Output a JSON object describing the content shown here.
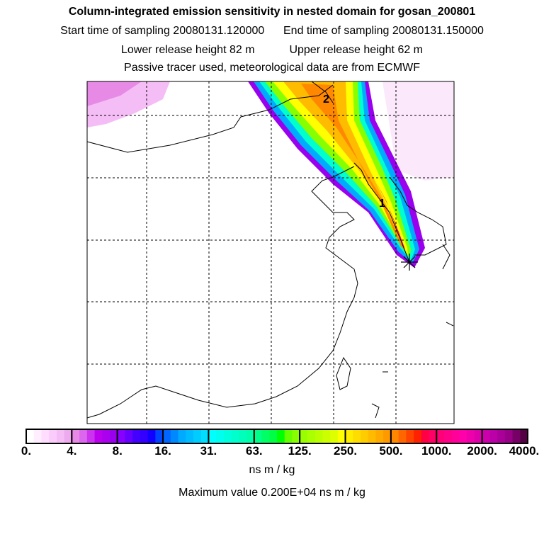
{
  "title": "Column-integrated emission sensitivity in nested domain for gosan_200801",
  "subtitle_start": "Start time of sampling 20080131.120000",
  "subtitle_end": "End time of sampling 20080131.150000",
  "lower_release": "Lower release height   82 m",
  "upper_release": "Upper release height   62 m",
  "tracer_note": "Passive tracer used, meteorological data are from ECMWF",
  "map": {
    "trajectory_labels": [
      "2",
      "1"
    ],
    "receptor_icon": "star-icon"
  },
  "colorbar": {
    "labels": [
      "0.",
      "4.",
      "8.",
      "16.",
      "31.",
      "63.",
      "125.",
      "250.",
      "500.",
      "1000.",
      "2000.",
      "4000."
    ],
    "colors": [
      [
        "#ffffff",
        "#ffeeff",
        "#ffddff",
        "#fbccfb",
        "#f5bdf5",
        "#eeaaee"
      ],
      [
        "#e68ae6",
        "#dd66ee",
        "#cc33ee",
        "#bb00ee",
        "#aa00ee",
        "#9900ee"
      ],
      [
        "#8800ff",
        "#6600ff",
        "#4400ff",
        "#3300ff",
        "#1100ff",
        "#0044ff"
      ],
      [
        "#0066ff",
        "#0088ff",
        "#00aaff",
        "#00bbff",
        "#00ccff",
        "#00ddff"
      ],
      [
        "#00ffff",
        "#00ffee",
        "#00ffdd",
        "#00ffcc",
        "#00ffbb",
        "#00ffaa"
      ],
      [
        "#00ff88",
        "#00ff66",
        "#00ff44",
        "#00ff00",
        "#66ff00",
        "#88ff00"
      ],
      [
        "#99ff00",
        "#aaff00",
        "#bbff00",
        "#ccff00",
        "#ddff00",
        "#ffff00"
      ],
      [
        "#ffee00",
        "#ffdd00",
        "#ffcc00",
        "#ffbb00",
        "#ffaa00",
        "#ff9900"
      ],
      [
        "#ff8800",
        "#ff6600",
        "#ff4400",
        "#ff2200",
        "#ff0044",
        "#ff0066"
      ],
      [
        "#ff0077",
        "#ff0088",
        "#ff0099",
        "#ff00aa",
        "#ee00aa",
        "#dd00aa"
      ],
      [
        "#cc00aa",
        "#bb00aa",
        "#aa0099",
        "#990088",
        "#770066",
        "#550044"
      ]
    ]
  },
  "units": "ns m / kg",
  "maximum": "Maximum value  0.200E+04 ns m / kg"
}
